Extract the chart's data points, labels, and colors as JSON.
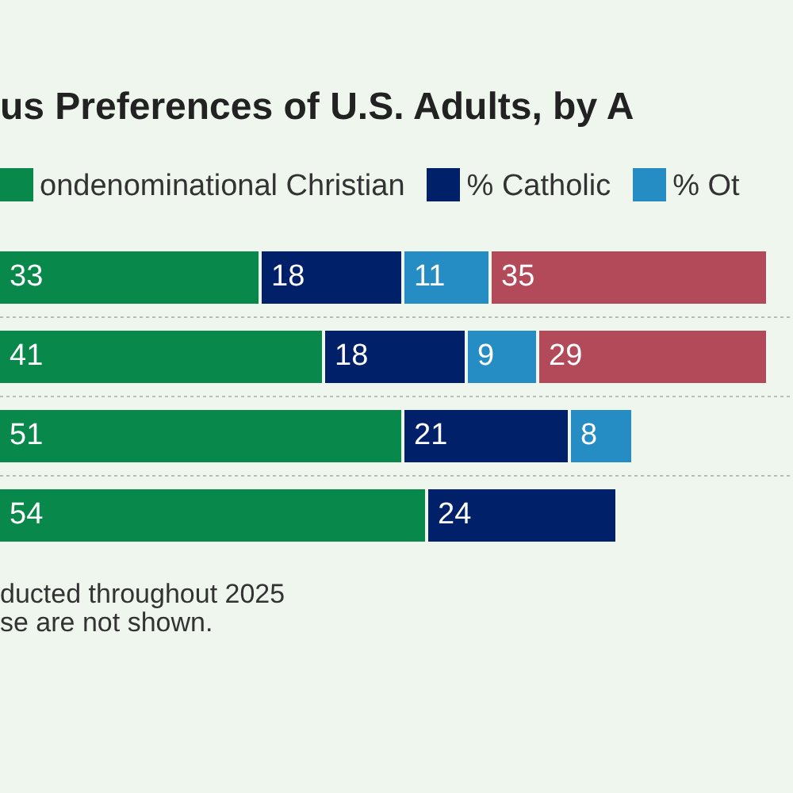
{
  "chart_data": {
    "type": "bar",
    "orientation": "horizontal",
    "stacked": true,
    "title": "us Preferences of U.S. Adults, by A",
    "categories": [
      null,
      null,
      null,
      null
    ],
    "series": [
      {
        "name": "ondenominational Christian",
        "color": "#08884a",
        "values": [
          33,
          41,
          51,
          54
        ]
      },
      {
        "name": "% Catholic",
        "color": "#002169",
        "values": [
          18,
          18,
          21,
          24
        ]
      },
      {
        "name": "% Ot",
        "color": "#258dc3",
        "values": [
          11,
          9,
          8,
          null
        ]
      },
      {
        "color": "#b24a5a",
        "values": [
          35,
          29,
          null,
          null
        ]
      }
    ],
    "xlim": [
      0,
      100
    ],
    "tick_labels": false,
    "grid": "y",
    "legend": "top",
    "data_labels": true,
    "annotations": [
      "ducted throughout 2025",
      "se are not shown."
    ]
  }
}
